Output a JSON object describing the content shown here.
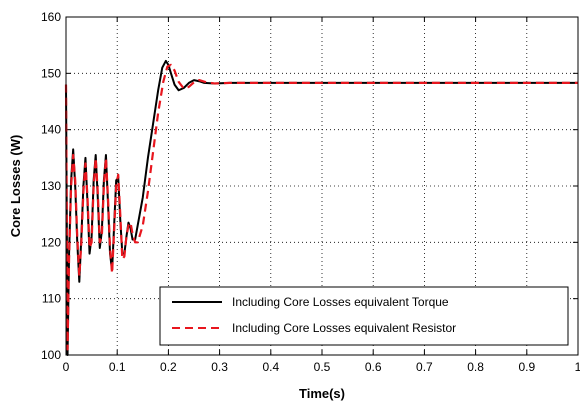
{
  "chart_data": {
    "type": "line",
    "title": "",
    "xlabel": "Time(s)",
    "ylabel": "Core Losses (W)",
    "xlim": [
      0,
      1
    ],
    "ylim": [
      100,
      160
    ],
    "xticks": [
      "0",
      "0.1",
      "0.2",
      "0.3",
      "0.4",
      "0.5",
      "0.6",
      "0.7",
      "0.8",
      "0.9",
      "1"
    ],
    "yticks": [
      "100",
      "110",
      "120",
      "130",
      "140",
      "150",
      "160"
    ],
    "grid": true,
    "legend_position": "bottom-right",
    "series": [
      {
        "name": "Including Core Losses equivalent Torque",
        "color": "#000000",
        "dash": "solid",
        "points": [
          [
            0.0,
            148
          ],
          [
            0.003,
            100
          ],
          [
            0.006,
            118
          ],
          [
            0.01,
            131
          ],
          [
            0.014,
            136.5
          ],
          [
            0.018,
            130
          ],
          [
            0.022,
            120
          ],
          [
            0.026,
            113
          ],
          [
            0.03,
            121
          ],
          [
            0.034,
            130
          ],
          [
            0.038,
            135
          ],
          [
            0.042,
            127
          ],
          [
            0.046,
            118
          ],
          [
            0.05,
            121
          ],
          [
            0.054,
            131
          ],
          [
            0.058,
            135.5
          ],
          [
            0.062,
            128
          ],
          [
            0.066,
            119
          ],
          [
            0.07,
            122
          ],
          [
            0.074,
            131
          ],
          [
            0.078,
            135.5
          ],
          [
            0.082,
            127
          ],
          [
            0.086,
            118
          ],
          [
            0.09,
            115
          ],
          [
            0.094,
            123
          ],
          [
            0.098,
            131
          ],
          [
            0.102,
            131.5
          ],
          [
            0.106,
            124
          ],
          [
            0.11,
            118
          ],
          [
            0.114,
            118
          ],
          [
            0.118,
            121
          ],
          [
            0.122,
            123.5
          ],
          [
            0.126,
            122.5
          ],
          [
            0.13,
            120.5
          ],
          [
            0.135,
            120.5
          ],
          [
            0.14,
            123
          ],
          [
            0.15,
            128
          ],
          [
            0.16,
            135
          ],
          [
            0.17,
            141
          ],
          [
            0.18,
            147
          ],
          [
            0.188,
            151
          ],
          [
            0.195,
            152.2
          ],
          [
            0.2,
            151.5
          ],
          [
            0.205,
            150
          ],
          [
            0.212,
            148
          ],
          [
            0.22,
            147
          ],
          [
            0.23,
            147.4
          ],
          [
            0.24,
            148.3
          ],
          [
            0.25,
            148.8
          ],
          [
            0.26,
            148.6
          ],
          [
            0.27,
            148.3
          ],
          [
            0.29,
            148.2
          ],
          [
            0.32,
            148.3
          ],
          [
            1.0,
            148.3
          ]
        ]
      },
      {
        "name": "Including Core Losses equivalent Resistor",
        "color": "#e8161e",
        "dash": "dashed",
        "points": [
          [
            0.0,
            148
          ],
          [
            0.003,
            101
          ],
          [
            0.006,
            117
          ],
          [
            0.01,
            130
          ],
          [
            0.014,
            135.5
          ],
          [
            0.018,
            131
          ],
          [
            0.022,
            121
          ],
          [
            0.026,
            114
          ],
          [
            0.03,
            120
          ],
          [
            0.034,
            129
          ],
          [
            0.038,
            134
          ],
          [
            0.042,
            128
          ],
          [
            0.046,
            119
          ],
          [
            0.05,
            120
          ],
          [
            0.054,
            130
          ],
          [
            0.058,
            135
          ],
          [
            0.062,
            129
          ],
          [
            0.066,
            120
          ],
          [
            0.07,
            121
          ],
          [
            0.074,
            130
          ],
          [
            0.078,
            135
          ],
          [
            0.082,
            128
          ],
          [
            0.086,
            119
          ],
          [
            0.09,
            114.5
          ],
          [
            0.094,
            122
          ],
          [
            0.098,
            130
          ],
          [
            0.102,
            132
          ],
          [
            0.106,
            125
          ],
          [
            0.11,
            117
          ],
          [
            0.114,
            117.5
          ],
          [
            0.118,
            121
          ],
          [
            0.122,
            123
          ],
          [
            0.126,
            123.5
          ],
          [
            0.13,
            121.5
          ],
          [
            0.135,
            120
          ],
          [
            0.14,
            120
          ],
          [
            0.15,
            123
          ],
          [
            0.16,
            129
          ],
          [
            0.17,
            136
          ],
          [
            0.18,
            143
          ],
          [
            0.19,
            148.5
          ],
          [
            0.198,
            151.2
          ],
          [
            0.205,
            151.5
          ],
          [
            0.212,
            150.5
          ],
          [
            0.22,
            148.5
          ],
          [
            0.23,
            147.3
          ],
          [
            0.24,
            147.6
          ],
          [
            0.25,
            148.4
          ],
          [
            0.26,
            148.8
          ],
          [
            0.275,
            148.4
          ],
          [
            0.29,
            148.2
          ],
          [
            0.32,
            148.3
          ],
          [
            1.0,
            148.3
          ]
        ]
      }
    ]
  }
}
